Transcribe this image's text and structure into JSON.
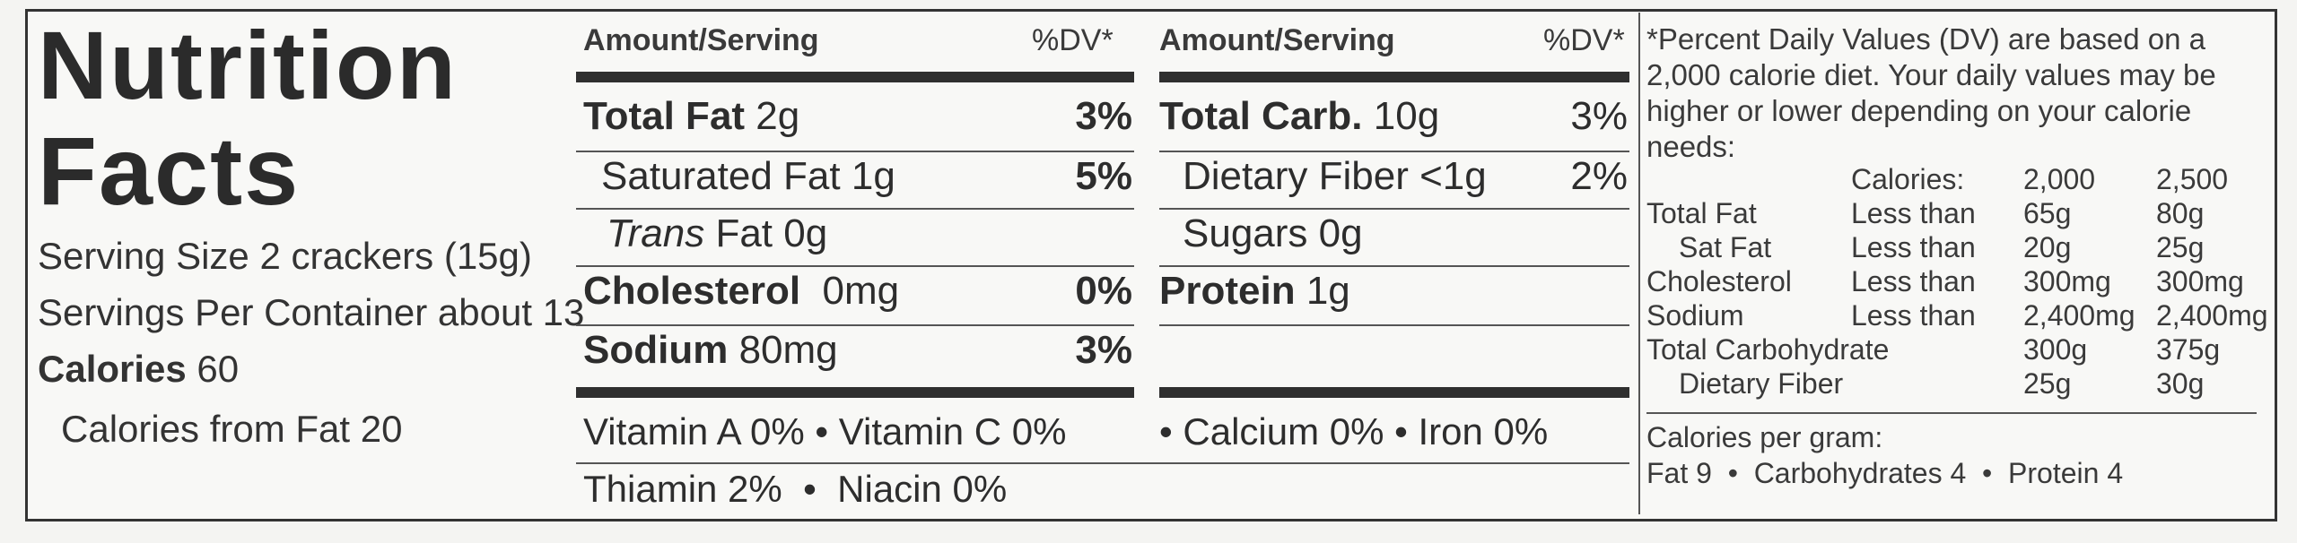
{
  "header": {
    "title_line1": "Nutrition",
    "title_line2": "Facts"
  },
  "serving": {
    "size": "Serving Size 2 crackers (15g)",
    "per_container": "Servings Per Container about 13",
    "calories_label": "Calories",
    "calories_value": "60",
    "calories_from_fat": "Calories from Fat 20"
  },
  "columns": {
    "amount_header": "Amount/Serving",
    "dv_header": "%DV*"
  },
  "left_nutrients": [
    {
      "label": "Total Fat",
      "amount": "2g",
      "dv": "3%",
      "bold": true
    },
    {
      "label": "Saturated Fat",
      "amount": "1g",
      "dv": "5%",
      "bold": false
    },
    {
      "label_italic": "Trans",
      "label": "Fat",
      "amount": "0g",
      "dv": "",
      "bold": false
    },
    {
      "label": "Cholesterol",
      "amount": "0mg",
      "dv": "0%",
      "bold": true
    },
    {
      "label": "Sodium",
      "amount": "80mg",
      "dv": "3%",
      "bold": true
    }
  ],
  "right_nutrients": [
    {
      "label": "Total Carb.",
      "amount": "10g",
      "dv": "3%",
      "bold": true
    },
    {
      "label": "Dietary Fiber",
      "amount": "<1g",
      "dv": "2%",
      "bold": false
    },
    {
      "label": "Sugars",
      "amount": "0g",
      "dv": "",
      "bold": false
    },
    {
      "label": "Protein",
      "amount": "1g",
      "dv": "",
      "bold": true
    }
  ],
  "vitamins": {
    "line1_left": "Vitamin A 0%",
    "line1_mid": "Vitamin C 0%",
    "line1_right": "Calcium 0%",
    "line1_far": "Iron 0%",
    "line2_left": "Thiamin 2%",
    "line2_right": "Niacin 0%"
  },
  "footnote": {
    "note": "*Percent Daily Values (DV) are based on a 2,000 calorie diet.  Your daily values may be higher or lower depending on your calorie needs:",
    "header": [
      "",
      "Calories:",
      "2,000",
      "2,500"
    ],
    "rows": [
      [
        "Total Fat",
        "Less than",
        "65g",
        "80g"
      ],
      [
        "Sat Fat",
        "Less than",
        "20g",
        "25g"
      ],
      [
        "Cholesterol",
        "Less than",
        "300mg",
        "300mg"
      ],
      [
        "Sodium",
        "Less than",
        "2,400mg",
        "2,400mg"
      ],
      [
        "Total Carbohydrate",
        "",
        "300g",
        "375g"
      ],
      [
        "Dietary Fiber",
        "",
        "25g",
        "30g"
      ]
    ],
    "per_gram_label": "Calories per gram:",
    "per_gram_fat": "Fat 9",
    "per_gram_carbs": "Carbohydrates 4",
    "per_gram_protein": "Protein 4"
  }
}
